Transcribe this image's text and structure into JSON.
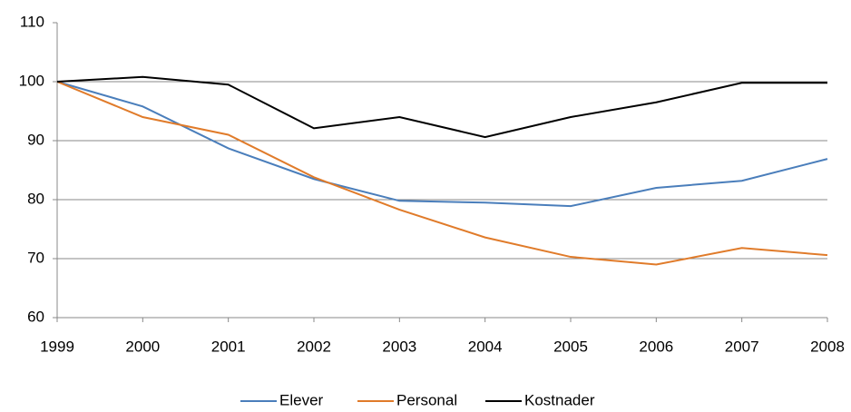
{
  "chart_data": {
    "type": "line",
    "x": [
      1999,
      2000,
      2001,
      2002,
      2003,
      2004,
      2005,
      2006,
      2007,
      2008
    ],
    "xlim": [
      1999,
      2008
    ],
    "xticks": [
      1999,
      2000,
      2001,
      2002,
      2003,
      2004,
      2005,
      2006,
      2007,
      2008
    ],
    "ylim": [
      60,
      110
    ],
    "yticks": [
      60,
      70,
      80,
      90,
      100,
      110
    ],
    "grid": true,
    "legend": "bottom",
    "series": [
      {
        "name": "Elever",
        "color": "#4a7ebb",
        "values": [
          100,
          95.8,
          88.7,
          83.5,
          79.8,
          79.5,
          78.9,
          82,
          83.2,
          86.9
        ]
      },
      {
        "name": "Personal",
        "color": "#e07b2a",
        "values": [
          100,
          94,
          91,
          83.8,
          78.3,
          73.6,
          70.3,
          69,
          71.8,
          70.6
        ]
      },
      {
        "name": "Kostnader",
        "color": "#000000",
        "values": [
          100,
          100.8,
          99.5,
          92.1,
          94,
          90.6,
          94,
          96.5,
          99.8,
          99.8
        ]
      }
    ]
  }
}
